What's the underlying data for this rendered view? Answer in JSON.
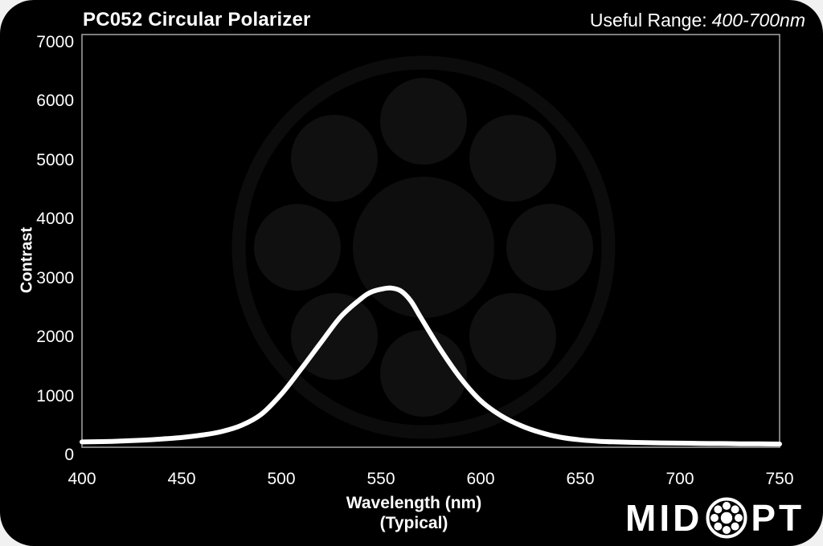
{
  "header": {
    "title": "PC052 Circular Polarizer",
    "useful_range_label": "Useful Range:",
    "useful_range_value": "400-700nm"
  },
  "chart_data": {
    "type": "line",
    "title": "PC052 Circular Polarizer",
    "subtitle": "Useful Range: 400-700nm",
    "xlabel": "Wavelength (nm)",
    "xlabel_note": "(Typical)",
    "ylabel": "Contrast",
    "xlim": [
      400,
      750
    ],
    "ylim": [
      0,
      7000
    ],
    "x_ticks": [
      400,
      450,
      500,
      550,
      600,
      650,
      700,
      750
    ],
    "y_ticks": [
      0,
      1000,
      2000,
      3000,
      4000,
      5000,
      6000,
      7000
    ],
    "grid": false,
    "legend": "none",
    "line_color": "#ffffff",
    "plot_background": "#000000",
    "series": [
      {
        "name": "Contrast (Typical)",
        "x": [
          400,
          410,
          420,
          430,
          440,
          450,
          460,
          470,
          480,
          490,
          500,
          510,
          520,
          530,
          540,
          545,
          550,
          555,
          560,
          565,
          570,
          580,
          590,
          600,
          610,
          620,
          630,
          640,
          650,
          660,
          670,
          680,
          690,
          700,
          710,
          720,
          730,
          740,
          750
        ],
        "y": [
          90,
          95,
          105,
          120,
          140,
          165,
          205,
          265,
          370,
          560,
          900,
          1330,
          1780,
          2220,
          2520,
          2630,
          2680,
          2700,
          2650,
          2480,
          2200,
          1650,
          1170,
          790,
          540,
          370,
          250,
          170,
          125,
          100,
          88,
          80,
          74,
          70,
          66,
          62,
          59,
          57,
          55
        ]
      }
    ]
  },
  "logo": {
    "name": "MidOpt",
    "text_left": "MID",
    "text_right": "PT"
  },
  "colors": {
    "card_bg": "#000000",
    "page_bg": "#f1f1f1",
    "text": "#ffffff",
    "axis_frame": "#a6a6a6",
    "curve": "#ffffff",
    "watermark": "#0e0e0e"
  }
}
